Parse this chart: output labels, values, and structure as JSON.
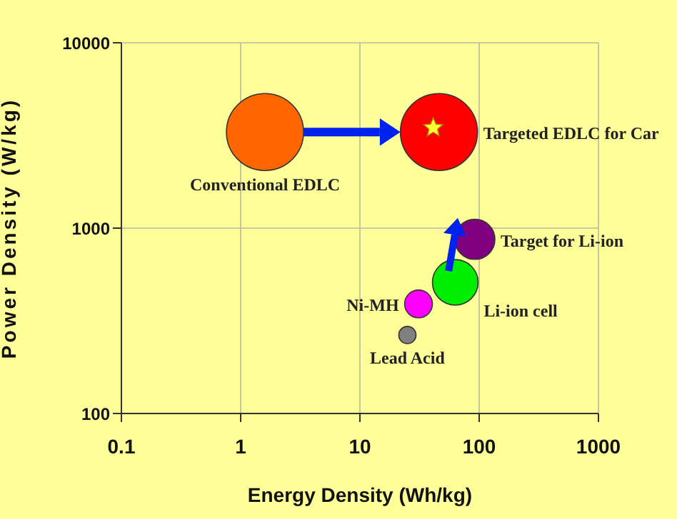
{
  "chart_data": {
    "type": "bubble",
    "xlabel": "Energy Density (Wh/kg)",
    "ylabel": "Power Density (W/kg)",
    "log": "xy",
    "xlim": [
      0.1,
      1000
    ],
    "ylim": [
      100,
      10000
    ],
    "xticks": [
      0.1,
      1,
      10,
      100,
      1000
    ],
    "yticks": [
      100,
      1000,
      10000
    ],
    "grid": true,
    "legend": false,
    "series": [
      {
        "name": "Conventional EDLC",
        "color": "#ff6600",
        "x": [
          1.6
        ],
        "values": [
          3300
        ],
        "sizes": [
          1
        ]
      },
      {
        "name": "Targeted EDLC for Car",
        "color": "#ff0000",
        "x": [
          46
        ],
        "values": [
          3300
        ],
        "sizes": [
          1
        ]
      },
      {
        "name": "Target for Li-ion",
        "color": "#800080",
        "x": [
          92
        ],
        "values": [
          870
        ],
        "sizes": [
          0.27
        ]
      },
      {
        "name": "Li-ion cell",
        "color": "#00ee00",
        "x": [
          63
        ],
        "values": [
          510
        ],
        "sizes": [
          0.35
        ]
      },
      {
        "name": "Ni-MH",
        "color": "#ff00ff",
        "x": [
          31
        ],
        "values": [
          390
        ],
        "sizes": [
          0.13
        ]
      },
      {
        "name": "Lead Acid",
        "color": "#808080",
        "x": [
          25
        ],
        "values": [
          265
        ],
        "sizes": [
          0.05
        ]
      }
    ]
  }
}
